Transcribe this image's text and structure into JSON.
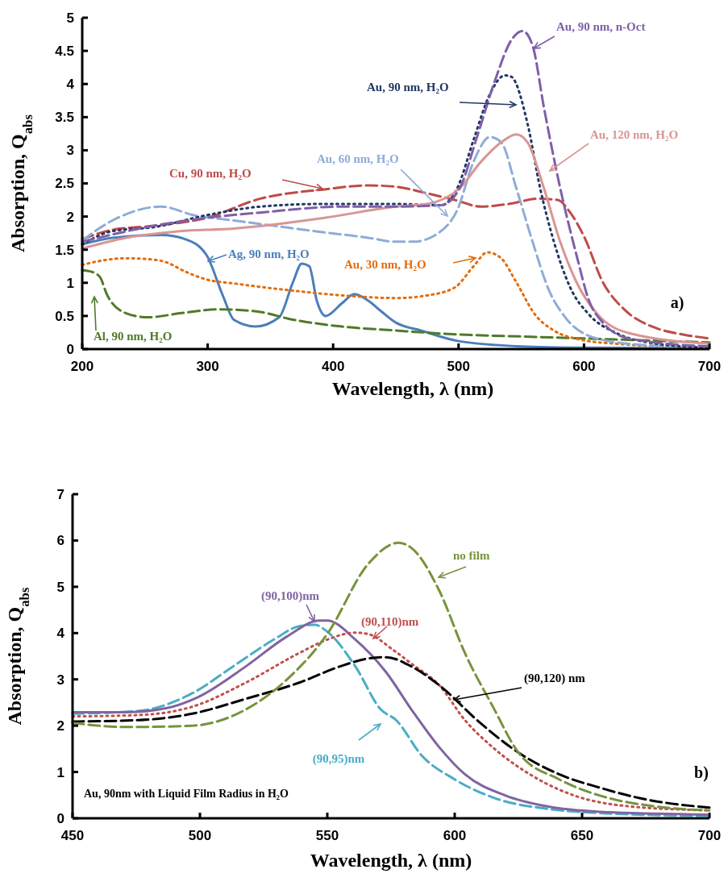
{
  "chart_data": [
    {
      "type": "line",
      "xlabel": "Wavelength, λ (nm)",
      "ylabel": "Absorption, Q$_{abs}$",
      "xlim": [
        200,
        700
      ],
      "ylim": [
        0,
        5
      ],
      "xticks": [
        200,
        300,
        400,
        500,
        600,
        700
      ],
      "yticks": [
        0,
        0.5,
        1,
        1.5,
        2,
        2.5,
        3,
        3.5,
        4,
        4.5,
        5
      ],
      "grid": false,
      "annotations": [
        "a)"
      ],
      "series": [
        {
          "name": "Ag, 90 nm, H₂O",
          "color": "#4a7ebb",
          "line_style": "solid",
          "x": [
            200,
            224,
            263,
            282,
            299,
            312,
            321,
            338,
            357,
            368,
            375,
            381,
            387,
            394,
            407,
            417,
            428,
            439,
            450,
            470,
            500,
            550,
            600,
            700
          ],
          "values": [
            1.58,
            1.68,
            1.72,
            1.66,
            1.42,
            0.81,
            0.44,
            0.34,
            0.48,
            1.01,
            1.29,
            1.25,
            0.73,
            0.5,
            0.69,
            0.83,
            0.73,
            0.56,
            0.4,
            0.28,
            0.12,
            0.04,
            0.02,
            0.01
          ]
        },
        {
          "name": "Al, 90 nm, H₂O",
          "color": "#4f7a28",
          "line_style": "dashed",
          "x": [
            200,
            207,
            214,
            220,
            235,
            252,
            278,
            310,
            342,
            364,
            407,
            450,
            500,
            550,
            600,
            650,
            700
          ],
          "values": [
            1.19,
            1.17,
            1.09,
            0.81,
            0.54,
            0.48,
            0.54,
            0.6,
            0.56,
            0.46,
            0.34,
            0.28,
            0.22,
            0.19,
            0.16,
            0.13,
            0.1
          ]
        },
        {
          "name": "Au, 30 nm, H₂O",
          "color": "#e46c0a",
          "line_style": "dotted",
          "x": [
            200,
            214,
            235,
            257,
            267,
            282,
            299,
            321,
            364,
            407,
            450,
            475,
            497,
            512,
            523,
            534,
            546,
            561,
            576,
            598,
            626,
            700
          ],
          "values": [
            1.27,
            1.33,
            1.37,
            1.35,
            1.31,
            1.17,
            1.05,
            0.99,
            0.89,
            0.81,
            0.77,
            0.81,
            0.93,
            1.25,
            1.46,
            1.37,
            1.01,
            0.52,
            0.28,
            0.14,
            0.08,
            0.02
          ]
        },
        {
          "name": "Cu, 90 nm, H₂O",
          "color": "#be4b48",
          "line_style": "dashed",
          "x": [
            200,
            224,
            257,
            299,
            342,
            393,
            428,
            450,
            475,
            497,
            518,
            540,
            564,
            579,
            589,
            600,
            615,
            632,
            657,
            679,
            700
          ],
          "values": [
            1.66,
            1.8,
            1.86,
            1.98,
            2.27,
            2.41,
            2.47,
            2.45,
            2.35,
            2.25,
            2.15,
            2.19,
            2.27,
            2.25,
            2.06,
            1.7,
            1.01,
            0.6,
            0.32,
            0.22,
            0.16
          ]
        },
        {
          "name": "Au, 60 nm, H₂O",
          "color": "#8eacd8",
          "line_style": "dashed",
          "x": [
            200,
            224,
            263,
            289,
            321,
            353,
            385,
            428,
            450,
            464,
            486,
            499,
            512,
            525,
            534,
            546,
            559,
            572,
            585,
            604,
            636,
            700
          ],
          "values": [
            1.64,
            1.94,
            2.15,
            2.02,
            1.94,
            1.86,
            1.78,
            1.68,
            1.62,
            1.62,
            1.78,
            2.1,
            2.83,
            3.2,
            3.12,
            2.43,
            1.62,
            0.89,
            0.48,
            0.2,
            0.08,
            0.02
          ]
        },
        {
          "name": "Au, 90 nm, H₂O",
          "color": "#1f3864",
          "line_style": "dotted",
          "x": [
            200,
            224,
            257,
            299,
            342,
            393,
            450,
            486,
            499,
            512,
            525,
            537,
            542,
            555,
            565,
            576,
            589,
            604,
            626,
            658,
            700
          ],
          "values": [
            1.58,
            1.78,
            1.84,
            2.02,
            2.15,
            2.19,
            2.19,
            2.17,
            2.43,
            3.16,
            3.85,
            4.13,
            4.11,
            3.4,
            2.43,
            1.62,
            0.93,
            0.52,
            0.24,
            0.08,
            0.02
          ]
        },
        {
          "name": "Au, 120 nm, H₂O",
          "color": "#d99694",
          "line_style": "solid",
          "x": [
            200,
            235,
            278,
            321,
            393,
            450,
            475,
            501,
            518,
            534,
            546,
            555,
            568,
            581,
            594,
            611,
            636,
            700
          ],
          "values": [
            1.52,
            1.68,
            1.78,
            1.82,
            1.98,
            2.15,
            2.19,
            2.43,
            2.83,
            3.12,
            3.24,
            3.12,
            2.43,
            1.62,
            1.01,
            0.52,
            0.24,
            0.08
          ]
        },
        {
          "name": "Au, 90 nm, n-Oct",
          "color": "#7f5fa8",
          "line_style": "dashed",
          "x": [
            200,
            257,
            299,
            342,
            407,
            450,
            486,
            501,
            514,
            529,
            542,
            551,
            559,
            568,
            581,
            594,
            604,
            615,
            636,
            700
          ],
          "values": [
            1.62,
            1.86,
            1.98,
            2.06,
            2.15,
            2.15,
            2.17,
            2.43,
            3.16,
            4.05,
            4.66,
            4.8,
            4.58,
            3.65,
            2.43,
            1.42,
            0.73,
            0.4,
            0.16,
            0.04
          ]
        }
      ]
    },
    {
      "type": "line",
      "xlabel": "Wavelength, λ (nm)",
      "ylabel": "Absorption, Q$_{abs}$",
      "xlim": [
        450,
        700
      ],
      "ylim": [
        0,
        7
      ],
      "xticks": [
        450,
        500,
        550,
        600,
        650,
        700
      ],
      "yticks": [
        0,
        1,
        2,
        3,
        4,
        5,
        6,
        7
      ],
      "grid": false,
      "annotations": [
        "b)",
        "Au, 90nm with Liquid Film Radius in H₂O"
      ],
      "series": [
        {
          "name": "(90,95)nm",
          "color": "#4bacc6",
          "line_style": "dashed",
          "x": [
            450,
            476,
            497,
            513,
            529,
            539,
            545,
            550,
            561,
            571,
            577,
            587,
            600,
            616,
            637,
            658,
            700
          ],
          "values": [
            2.26,
            2.32,
            2.7,
            3.28,
            3.86,
            4.15,
            4.18,
            4.03,
            3.28,
            2.35,
            2.12,
            1.36,
            0.84,
            0.43,
            0.2,
            0.11,
            0.05
          ]
        },
        {
          "name": "(90,100)nm",
          "color": "#8064a2",
          "line_style": "solid",
          "x": [
            450,
            471,
            487,
            499,
            518,
            534,
            547,
            550,
            561,
            573,
            583,
            594,
            604,
            620,
            636,
            657,
            699
          ],
          "values": [
            2.29,
            2.29,
            2.38,
            2.61,
            3.28,
            3.92,
            4.27,
            4.27,
            3.86,
            3.16,
            2.35,
            1.53,
            0.95,
            0.49,
            0.26,
            0.14,
            0.08
          ]
        },
        {
          "name": "(90,110)nm",
          "color": "#c0504d",
          "line_style": "dotted",
          "x": [
            450,
            476,
            497,
            518,
            539,
            550,
            561,
            566,
            576,
            583,
            594,
            604,
            615,
            631,
            647,
            668,
            700
          ],
          "values": [
            2.2,
            2.23,
            2.41,
            2.93,
            3.57,
            3.86,
            4.01,
            3.98,
            3.63,
            3.34,
            2.87,
            2.12,
            1.53,
            0.9,
            0.49,
            0.26,
            0.17
          ]
        },
        {
          "name": "(90,120) nm",
          "color": "#000000",
          "line_style": "dashed",
          "x": [
            450,
            476,
            497,
            518,
            539,
            555,
            566,
            573,
            583,
            594,
            610,
            625,
            641,
            657,
            673,
            700
          ],
          "values": [
            2.09,
            2.12,
            2.26,
            2.58,
            2.93,
            3.28,
            3.45,
            3.48,
            3.28,
            2.87,
            2.06,
            1.42,
            0.95,
            0.66,
            0.43,
            0.23
          ]
        },
        {
          "name": "no film",
          "color": "#77933c",
          "line_style": "dashed",
          "x": [
            450,
            471,
            497,
            518,
            534,
            550,
            566,
            578,
            583,
            594,
            604,
            615,
            625,
            641,
            657,
            678,
            700
          ],
          "values": [
            2.06,
            1.97,
            2.0,
            2.35,
            2.99,
            3.98,
            5.49,
            5.95,
            5.84,
            4.91,
            3.57,
            2.41,
            1.42,
            0.84,
            0.49,
            0.26,
            0.17
          ]
        }
      ]
    }
  ]
}
